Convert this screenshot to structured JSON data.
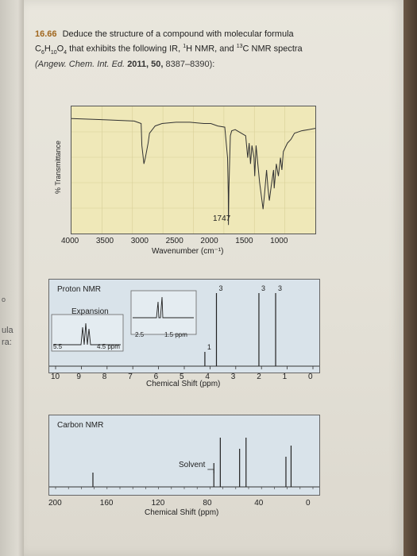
{
  "problem": {
    "number": "16.66",
    "line1": "Deduce the structure of a compound with molecular formula",
    "line2": "C6H10O4 that exhibits the following IR, 1H NMR, and 13C NMR spectra",
    "ref_journal": "(Angew. Chem. Int. Ed.",
    "ref_year": "2011, 50,",
    "ref_pages": "8387–8390):"
  },
  "margin_fragments": [
    "ula",
    "ra:",
    "o"
  ],
  "chart_data": [
    {
      "type": "line",
      "ylabel": "% Transmittance",
      "xlabel": "Wavenumber (cm⁻¹)",
      "x_ticks": [
        "4000",
        "3500",
        "3000",
        "2500",
        "2000",
        "1500",
        "1000"
      ],
      "xlim": [
        4000,
        500
      ],
      "annotations": [
        "1747"
      ],
      "series": [
        {
          "x": [
            4000,
            3500,
            3100,
            3000,
            2990,
            2960,
            2940,
            2900,
            2880,
            2800,
            2700,
            2500,
            2300,
            2100,
            2000,
            1900,
            1800,
            1760,
            1750,
            1747,
            1740,
            1720,
            1700,
            1650,
            1500,
            1470,
            1450,
            1430,
            1410,
            1380,
            1370,
            1350,
            1300,
            1250,
            1230,
            1200,
            1180,
            1160,
            1130,
            1100,
            1090,
            1060,
            1030,
            1000,
            980,
            960,
            900,
            850,
            800,
            700,
            600,
            500
          ],
          "y": [
            92,
            91,
            90,
            88,
            70,
            55,
            60,
            72,
            80,
            86,
            88,
            89,
            89,
            88,
            88,
            86,
            85,
            60,
            30,
            5,
            35,
            78,
            82,
            83,
            78,
            60,
            72,
            55,
            70,
            60,
            45,
            70,
            40,
            18,
            30,
            50,
            35,
            25,
            38,
            50,
            35,
            55,
            45,
            60,
            50,
            65,
            72,
            75,
            80,
            82,
            83,
            84
          ]
        }
      ]
    },
    {
      "type": "line",
      "title": "Proton NMR",
      "xlabel": "Chemical Shift (ppm)",
      "x_ticks": [
        "10",
        "9",
        "8",
        "7",
        "6",
        "5",
        "4",
        "3",
        "2",
        "1",
        "0"
      ],
      "xlim": [
        10,
        0
      ],
      "peaks": [
        {
          "ppm": 4.2,
          "integration": "1"
        },
        {
          "ppm": 3.75,
          "integration": "3"
        },
        {
          "ppm": 2.1,
          "integration": "3"
        },
        {
          "ppm": 1.45,
          "integration": "3"
        }
      ],
      "expansions": [
        {
          "label": "Expansion",
          "ticks": [
            "5.5",
            "4.5 ppm"
          ]
        },
        {
          "label": "",
          "ticks": [
            "2.5",
            "1.5 ppm"
          ]
        }
      ]
    },
    {
      "type": "line",
      "title": "Carbon NMR",
      "xlabel": "Chemical Shift (ppm)",
      "x_ticks": [
        "200",
        "160",
        "120",
        "80",
        "40",
        "0"
      ],
      "xlim": [
        200,
        0
      ],
      "annotations": [
        "Solvent"
      ],
      "peaks": [
        {
          "ppm": 171
        },
        {
          "ppm": 77,
          "label": "Solvent"
        },
        {
          "ppm": 72
        },
        {
          "ppm": 57
        },
        {
          "ppm": 52
        },
        {
          "ppm": 21
        },
        {
          "ppm": 17
        }
      ]
    }
  ]
}
